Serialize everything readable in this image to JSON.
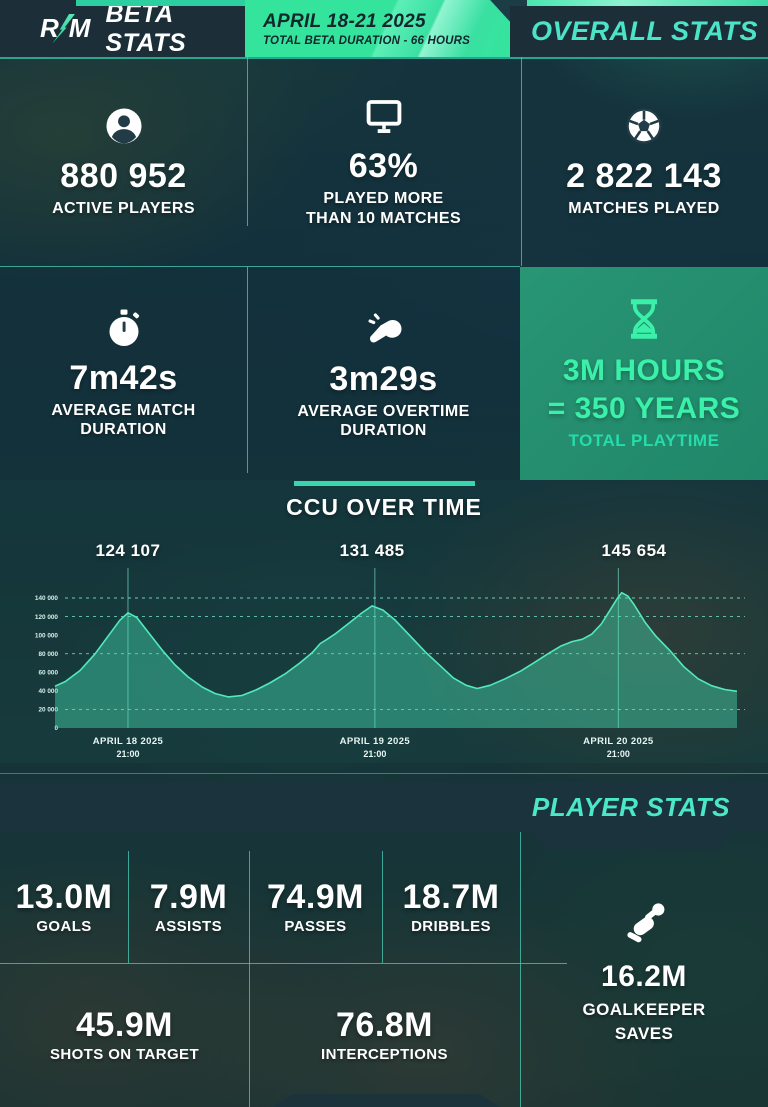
{
  "header": {
    "logo_left": "R",
    "logo_right": "M",
    "title": "BETA STATS",
    "date_range": "APRIL 18-21 2025",
    "duration": "TOTAL BETA DURATION - 66 HOURS",
    "right_title": "OVERALL STATS"
  },
  "overall_stats": {
    "cells": [
      {
        "icon": "player-icon",
        "value": "880 952",
        "label": "ACTIVE PLAYERS"
      },
      {
        "icon": "monitor-icon",
        "value": "63%",
        "label": "PLAYED MORE\nTHAN 10 MATCHES"
      },
      {
        "icon": "soccer-ball-icon",
        "value": "2 822 143",
        "label": "MATCHES PLAYED"
      },
      {
        "icon": "stopwatch-icon",
        "value": "7m42s",
        "label": "AVERAGE MATCH\nDURATION"
      },
      {
        "icon": "whistle-icon",
        "value": "3m29s",
        "label": "AVERAGE OVERTIME\nDURATION"
      }
    ],
    "highlight": {
      "icon": "hourglass-icon",
      "line1": "3M HOURS",
      "line2": "= 350 YEARS",
      "label": "TOTAL PLAYTIME"
    }
  },
  "chart_data": {
    "type": "area",
    "title": "CCU OVER TIME",
    "ylim": [
      0,
      140000
    ],
    "y_ticks": [
      "0",
      "20 000",
      "40 000",
      "60 000",
      "80 000",
      "100 000",
      "120 000",
      "140 000"
    ],
    "gridline_values": [
      140000,
      120000,
      80000,
      20000
    ],
    "grid": "dashed",
    "legend_position": "none",
    "x_ticks": [
      {
        "label": "APRIL 18 2025",
        "sub": "21:00",
        "t": 0.107
      },
      {
        "label": "APRIL 19 2025",
        "sub": "21:00",
        "t": 0.469
      },
      {
        "label": "APRIL 20 2025",
        "sub": "21:00",
        "t": 0.826
      }
    ],
    "peaks": [
      {
        "label": "124 107",
        "value": 124107,
        "t": 0.107
      },
      {
        "label": "131 485",
        "value": 131485,
        "t": 0.465
      },
      {
        "label": "145 654",
        "value": 145654,
        "t": 0.849
      }
    ],
    "points": [
      [
        0.0,
        45000
      ],
      [
        0.015,
        50000
      ],
      [
        0.037,
        62000
      ],
      [
        0.059,
        80000
      ],
      [
        0.081,
        102000
      ],
      [
        0.095,
        116000
      ],
      [
        0.107,
        124107
      ],
      [
        0.12,
        119000
      ],
      [
        0.139,
        101000
      ],
      [
        0.157,
        84000
      ],
      [
        0.176,
        68000
      ],
      [
        0.195,
        55000
      ],
      [
        0.216,
        44000
      ],
      [
        0.235,
        37000
      ],
      [
        0.254,
        33500
      ],
      [
        0.274,
        35000
      ],
      [
        0.295,
        41000
      ],
      [
        0.315,
        48500
      ],
      [
        0.337,
        58000
      ],
      [
        0.359,
        70000
      ],
      [
        0.377,
        81000
      ],
      [
        0.389,
        91000
      ],
      [
        0.399,
        95500
      ],
      [
        0.412,
        102000
      ],
      [
        0.433,
        114000
      ],
      [
        0.45,
        124000
      ],
      [
        0.465,
        131485
      ],
      [
        0.481,
        127000
      ],
      [
        0.499,
        116000
      ],
      [
        0.521,
        99000
      ],
      [
        0.543,
        82000
      ],
      [
        0.565,
        67000
      ],
      [
        0.584,
        54000
      ],
      [
        0.603,
        46000
      ],
      [
        0.619,
        42500
      ],
      [
        0.638,
        46000
      ],
      [
        0.66,
        53000
      ],
      [
        0.682,
        61000
      ],
      [
        0.704,
        71000
      ],
      [
        0.723,
        80000
      ],
      [
        0.741,
        88000
      ],
      [
        0.758,
        93000
      ],
      [
        0.773,
        95500
      ],
      [
        0.787,
        101000
      ],
      [
        0.801,
        112000
      ],
      [
        0.814,
        127000
      ],
      [
        0.824,
        139000
      ],
      [
        0.831,
        145654
      ],
      [
        0.84,
        142000
      ],
      [
        0.849,
        133000
      ],
      [
        0.865,
        114000
      ],
      [
        0.881,
        99000
      ],
      [
        0.902,
        83000
      ],
      [
        0.922,
        66000
      ],
      [
        0.943,
        53000
      ],
      [
        0.963,
        45500
      ],
      [
        0.982,
        41500
      ],
      [
        1.0,
        39500
      ]
    ]
  },
  "player_stats": {
    "title": "PLAYER STATS",
    "cells": [
      {
        "value": "13.0M",
        "label": "GOALS"
      },
      {
        "value": "7.9M",
        "label": "ASSISTS"
      },
      {
        "value": "74.9M",
        "label": "PASSES"
      },
      {
        "value": "18.7M",
        "label": "DRIBBLES"
      },
      {
        "value": "45.9M",
        "label": "SHOTS ON TARGET"
      },
      {
        "value": "76.8M",
        "label": "INTERCEPTIONS"
      }
    ],
    "goalkeeper": {
      "icon": "goalkeeper-icon",
      "value": "16.2M",
      "label": "GOALKEEPER\nSAVES"
    }
  },
  "colors": {
    "panel_dark": "#1b333c",
    "accent_green": "#35e49c",
    "accent_teal_text": "#4be4c8",
    "highlight_bg": "#2a9e78",
    "highlight_text": "#3bf0a8",
    "chart_line": "#52e9bb",
    "chart_fill": "rgba(72,226,181,0.42)",
    "hairline": "rgba(74,206,184,0.75)"
  }
}
